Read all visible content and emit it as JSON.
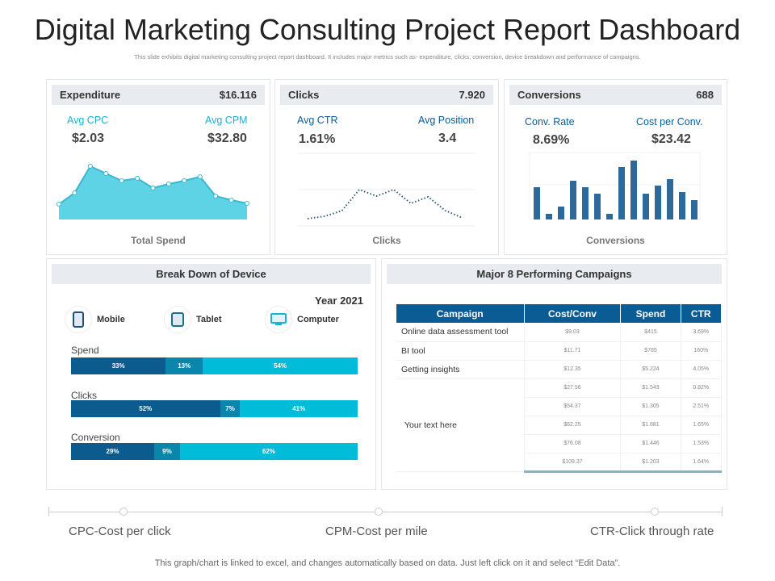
{
  "title": "Digital Marketing Consulting Project Report Dashboard",
  "subtitle": "This slide exhibits digital marketing consulting project report dashboard. It includes major metrics such as- expenditure, clicks, conversion, device breakdown and performance of campaigns.",
  "expenditure": {
    "label": "Expenditure",
    "total": "$16.116",
    "m1_label": "Avg CPC",
    "m1_value": "$2.03",
    "m2_label": "Avg CPM",
    "m2_value": "$32.80",
    "caption": "Total Spend"
  },
  "clicks": {
    "label": "Clicks",
    "total": "7.920",
    "m1_label": "Avg CTR",
    "m1_value": "1.61%",
    "m2_label": "Avg Position",
    "m2_value": "3.4",
    "caption": "Clicks"
  },
  "conversions": {
    "label": "Conversions",
    "total": "688",
    "m1_label": "Conv. Rate",
    "m1_value": "8.69%",
    "m2_label": "Cost per Conv.",
    "m2_value": "$23.42",
    "caption": "Conversions"
  },
  "chart_data": [
    {
      "type": "area",
      "values": [
        19,
        33,
        66,
        57,
        48,
        51,
        39,
        44,
        48,
        53,
        29,
        24,
        20
      ],
      "color": "#5fd3e6"
    },
    {
      "type": "line",
      "values": [
        9,
        12,
        19,
        45,
        37,
        45,
        28,
        36,
        19,
        10
      ],
      "color": "#2f5d78"
    },
    {
      "type": "bar",
      "values": [
        40,
        7,
        16,
        48,
        40,
        32,
        7,
        65,
        73,
        32,
        42,
        50,
        34,
        24
      ],
      "color": "#2d6a9b"
    },
    {
      "type": "bar",
      "stacked": true,
      "orientation": "horizontal",
      "categories": [
        "Spend",
        "Clicks",
        "Conversion"
      ],
      "series": [
        {
          "name": "Mobile",
          "values": [
            33,
            52,
            29
          ]
        },
        {
          "name": "Tablet",
          "values": [
            13,
            7,
            9
          ]
        },
        {
          "name": "Computer",
          "values": [
            54,
            41,
            62
          ]
        }
      ]
    }
  ],
  "device": {
    "title": "Break Down of Device",
    "year": "Year 2021",
    "items": [
      {
        "name": "Mobile"
      },
      {
        "name": "Tablet"
      },
      {
        "name": "Computer"
      }
    ],
    "colors": [
      "#0b5b8f",
      "#0a86ad",
      "#00bcd8"
    ]
  },
  "campaigns": {
    "title": "Major 8 Performing Campaigns",
    "headers": [
      "Campaign",
      "Cost/Conv",
      "Spend",
      "CTR"
    ],
    "rows": [
      [
        "Online data assessment tool",
        "$9.03",
        "$415",
        "3.69%"
      ],
      [
        "BI tool",
        "$11.71",
        "$785",
        "160%"
      ],
      [
        "Getting insights",
        "$12.35",
        "$5.224",
        "4.05%"
      ],
      [
        "Your text here",
        "$27.56",
        "$1.543",
        "0.82%"
      ],
      [
        "",
        "$54.37",
        "$1.305",
        "2.51%"
      ],
      [
        "",
        "$62.25",
        "$1.681",
        "1.65%"
      ],
      [
        "",
        "$76.08",
        "$1.446",
        "1.53%"
      ],
      [
        "",
        "$109.37",
        "$1.203",
        "1.64%"
      ]
    ]
  },
  "legend": [
    "CPC-Cost per click",
    "CPM-Cost per mile",
    "CTR-Click through rate"
  ],
  "footer": "This graph/chart is linked to excel, and changes automatically based on data. Just left click on it and select “Edit Data”."
}
